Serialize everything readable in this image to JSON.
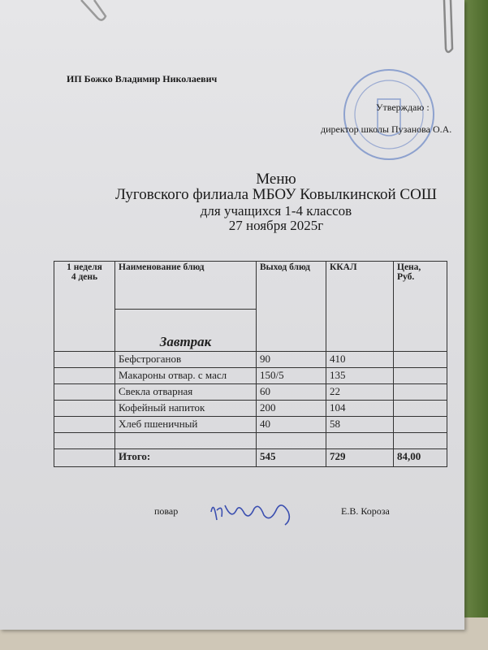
{
  "header": {
    "vendor": "ИП Божко Владимир Николаевич",
    "approve": "Утверждаю :",
    "director": "директор  школы  Пузанова О.А."
  },
  "title": {
    "line1": "Меню",
    "line2": "Луговского филиала МБОУ Ковылкинской СОШ",
    "line3": "для учащихся 1-4 классов",
    "date": "27 ноября  2025г"
  },
  "table": {
    "headers": {
      "week_day": "1 неделя\n4  день",
      "name": "Наименование блюд",
      "yield": "Выход блюд",
      "kcal": "ККАЛ",
      "price": "Цена,\nРуб."
    },
    "meal": "Завтрак",
    "rows": [
      {
        "name": "Бефстроганов",
        "yield": "90",
        "kcal": "410"
      },
      {
        "name": "Макароны отвар. с масл",
        "yield": "150/5",
        "kcal": "135"
      },
      {
        "name": "Свекла отварная",
        "yield": "60",
        "kcal": "22"
      },
      {
        "name": "Кофейный напиток",
        "yield": "200",
        "kcal": "104"
      },
      {
        "name": "Хлеб пшеничный",
        "yield": "40",
        "kcal": "58"
      }
    ],
    "total": {
      "label": "Итого:",
      "yield": "545",
      "kcal": "729",
      "price": "84,00"
    }
  },
  "footer": {
    "cook_label": "повар",
    "signature": "Короза",
    "cook_name": "Е.В. Короза"
  },
  "colors": {
    "stamp": "#6a86c4",
    "signature": "#3b4fb0"
  }
}
